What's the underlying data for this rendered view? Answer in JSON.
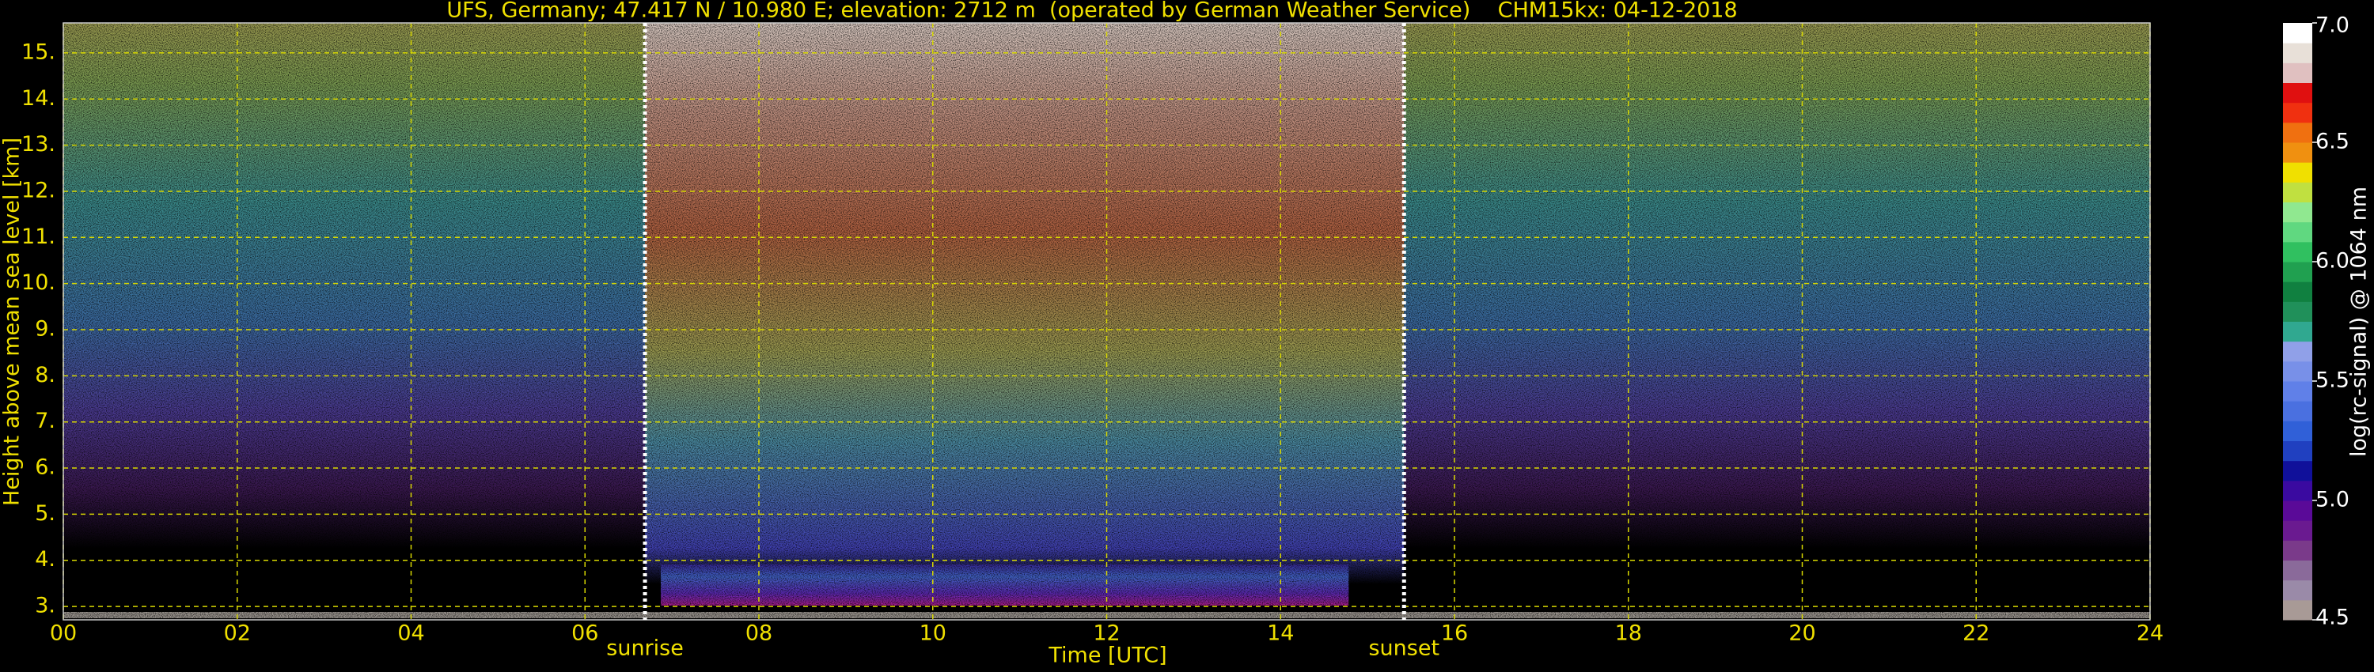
{
  "chart_data": {
    "type": "heatmap",
    "title": "UFS, Germany; 47.417 N / 10.980 E; elevation: 2712 m  (operated by German Weather Service)    CHM15kx: 04-12-2018",
    "x_label": "Time [UTC]",
    "y_label": "Height above mean sea level [km]",
    "xlim": [
      0,
      24
    ],
    "xticks": [
      {
        "value": 0,
        "label": "00"
      },
      {
        "value": 2,
        "label": "02"
      },
      {
        "value": 4,
        "label": "04"
      },
      {
        "value": 6,
        "label": "06"
      },
      {
        "value": 8,
        "label": "08"
      },
      10,
      12,
      14,
      16,
      18,
      20,
      22,
      24
    ],
    "ylim": [
      2.71,
      15.65
    ],
    "yticks": [
      {
        "value": 3,
        "label": "3."
      },
      {
        "value": 4,
        "label": "4."
      },
      {
        "value": 5,
        "label": "5."
      },
      {
        "value": 6,
        "label": "6."
      },
      {
        "value": 7,
        "label": "7."
      },
      {
        "value": 8,
        "label": "8."
      },
      {
        "value": 9,
        "label": "9."
      },
      {
        "value": 10,
        "label": "10."
      },
      {
        "value": 11,
        "label": "11."
      },
      {
        "value": 12,
        "label": "12."
      },
      {
        "value": 13,
        "label": "13."
      },
      {
        "value": 14,
        "label": "14."
      },
      {
        "value": 15,
        "label": "15."
      }
    ],
    "grid": true,
    "grid_color": "#d8d800",
    "text_color": "#f0e000",
    "annotations": [
      {
        "text": "sunrise",
        "x": 6.69
      },
      {
        "text": "sunset",
        "x": 15.42
      }
    ],
    "colorbar": {
      "label": "log(rc-signal) @ 1064 nm",
      "lim": [
        4.5,
        7.0
      ],
      "ticks": [
        {
          "value": 4.5,
          "label": "4.5"
        },
        {
          "value": 5.0,
          "label": "5.0"
        },
        {
          "value": 5.5,
          "label": "5.5"
        },
        {
          "value": 6.0,
          "label": "6.0"
        },
        {
          "value": 6.5,
          "label": "6.5"
        },
        {
          "value": 7.0,
          "label": "7.0"
        }
      ],
      "colors": [
        "#a89a96",
        "#9a8aa8",
        "#8a6a9a",
        "#7a3a8a",
        "#6a1a90",
        "#5a0a98",
        "#3a0aa0",
        "#10109a",
        "#2040c0",
        "#3060d8",
        "#4a70e0",
        "#6080e8",
        "#7890e8",
        "#90a0e8",
        "#30a890",
        "#20905a",
        "#108040",
        "#20a050",
        "#30c060",
        "#60d880",
        "#90e890",
        "#c0e040",
        "#f0e000",
        "#f09010",
        "#f07010",
        "#f03010",
        "#e01010",
        "#e0c0c0",
        "#e8e0d8",
        "#ffffff"
      ]
    }
  }
}
